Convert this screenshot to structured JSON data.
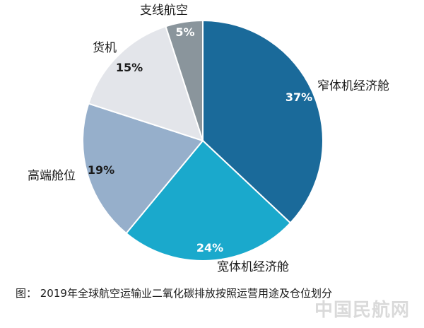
{
  "chart_data": {
    "type": "pie",
    "title": "",
    "start_angle_deg": 0,
    "direction": "clockwise",
    "slices": [
      {
        "label": "窄体机经济舱",
        "value": 37,
        "value_label": "37%",
        "color": "#1a6a9a",
        "value_text_color": "#ffffff"
      },
      {
        "label": "宽体机经济舱",
        "value": 24,
        "value_label": "24%",
        "color": "#1aa9cc",
        "value_text_color": "#ffffff"
      },
      {
        "label": "高端舱位",
        "value": 19,
        "value_label": "19%",
        "color": "#96afcb",
        "value_text_color": "#1a1a1a"
      },
      {
        "label": "货机",
        "value": 15,
        "value_label": "15%",
        "color": "#e3e5ea",
        "value_text_color": "#1a1a1a"
      },
      {
        "label": "支线航空",
        "value": 5,
        "value_label": "5%",
        "color": "#8a959c",
        "value_text_color": "#ffffff"
      }
    ]
  },
  "caption": "图：  2019年全球航空运输业二氧化碳排放按照运营用途及仓位划分",
  "watermark": "中国民航网"
}
